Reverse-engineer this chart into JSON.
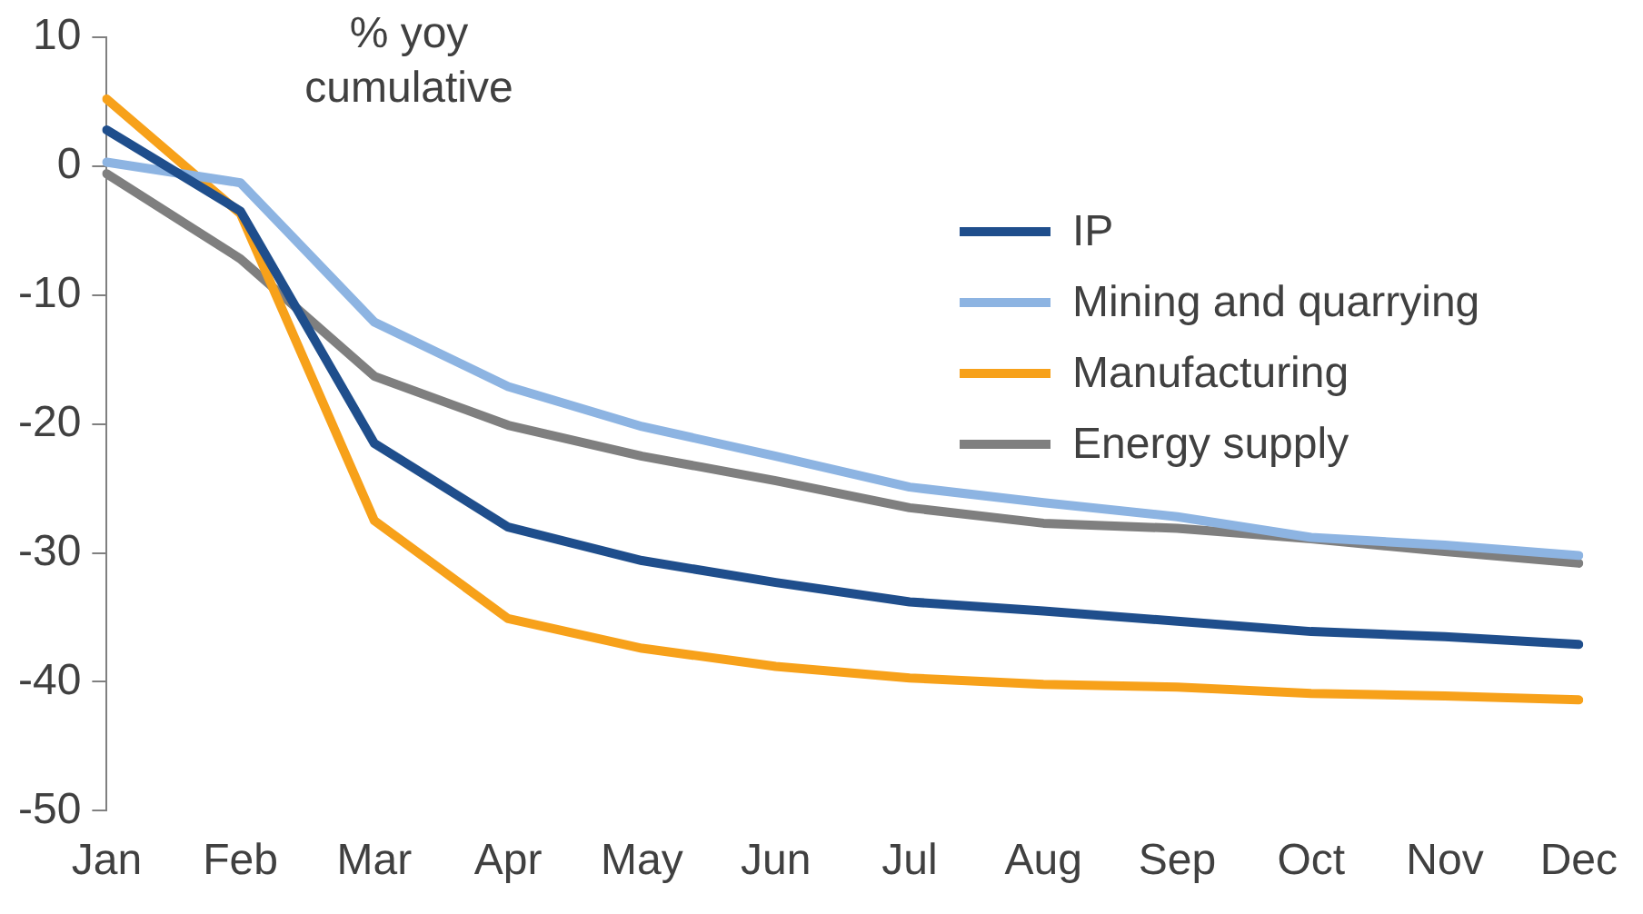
{
  "chart_data": {
    "type": "line",
    "categories": [
      "Jan",
      "Feb",
      "Mar",
      "Apr",
      "May",
      "Jun",
      "Jul",
      "Aug",
      "Sep",
      "Oct",
      "Nov",
      "Dec"
    ],
    "series": [
      {
        "name": "IP",
        "color": "#1f4e8c",
        "values": [
          2.8,
          -3.5,
          -21.5,
          -28,
          -30.6,
          -32.3,
          -33.8,
          -34.5,
          -35.3,
          -36.1,
          -36.5,
          -37.1
        ]
      },
      {
        "name": "Mining and quarrying",
        "color": "#8db4e2",
        "values": [
          0.3,
          -1.3,
          -12.1,
          -17.1,
          -20.2,
          -22.5,
          -24.9,
          -26.1,
          -27.2,
          -28.8,
          -29.4,
          -30.2
        ]
      },
      {
        "name": "Manufacturing",
        "color": "#f7a11a",
        "values": [
          5.2,
          -3.7,
          -27.5,
          -35.1,
          -37.4,
          -38.8,
          -39.7,
          -40.2,
          -40.4,
          -40.9,
          -41.1,
          -41.4
        ]
      },
      {
        "name": "Energy supply",
        "color": "#7f7f7f",
        "values": [
          -0.6,
          -7.2,
          -16.3,
          -20.1,
          -22.5,
          -24.4,
          -26.5,
          -27.7,
          -28.1,
          -28.9,
          -29.9,
          -30.8
        ]
      }
    ],
    "ylim": [
      -50,
      10
    ],
    "yticks": [
      -50,
      -40,
      -30,
      -20,
      -10,
      0,
      10
    ],
    "grid": false,
    "legend": "top right",
    "marker": "none",
    "line_style": "solid",
    "annotations": [
      "% yoy cumulative"
    ]
  }
}
